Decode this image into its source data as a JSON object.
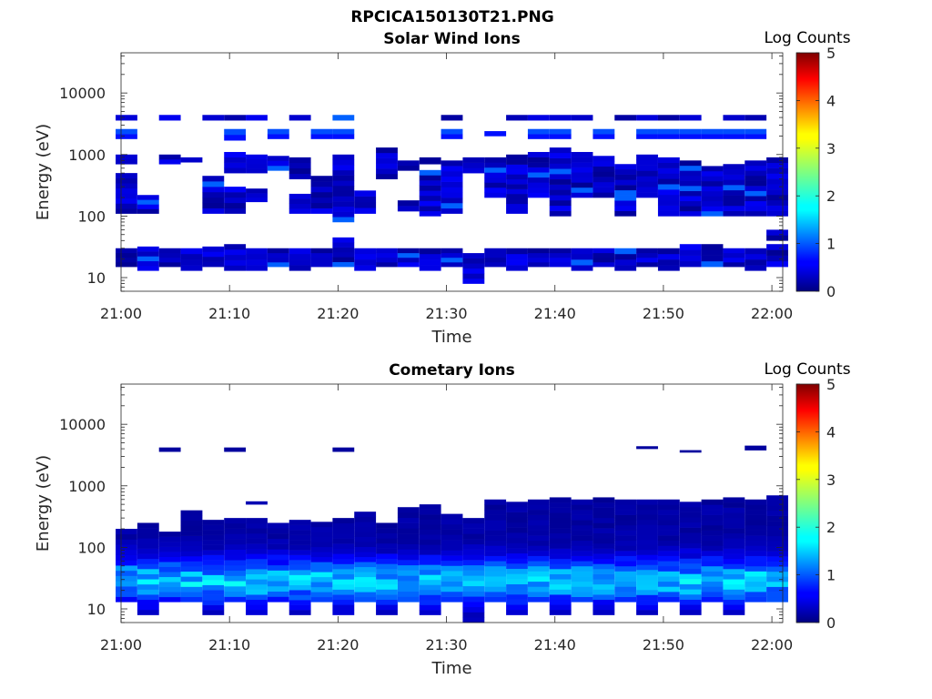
{
  "figure": {
    "title": "RPCICA150130T21.PNG"
  },
  "chart_data": [
    {
      "type": "heatmap",
      "title": "Solar Wind Ions",
      "xlabel": "Time",
      "ylabel": "Energy (eV)",
      "y_scale": "log",
      "ylim": [
        6,
        45000
      ],
      "y_ticks": [
        10,
        100,
        1000,
        10000
      ],
      "y_tick_labels": [
        "10",
        "100",
        "1000",
        "10000"
      ],
      "xlim": [
        "21:00",
        "22:01"
      ],
      "x_tick_labels": [
        "21:00",
        "21:10",
        "21:20",
        "21:30",
        "21:40",
        "21:50",
        "22:00"
      ],
      "colorbar": {
        "label": "Log Counts",
        "min": 0,
        "max": 5,
        "ticks": [
          "0",
          "1",
          "2",
          "3",
          "4",
          "5"
        ],
        "colormap": "jet"
      },
      "column_times_min": [
        0.5,
        2.5,
        4.5,
        6.5,
        8.5,
        10.5,
        12.5,
        14.5,
        16.5,
        18.5,
        20.5,
        22.5,
        24.5,
        26.5,
        28.5,
        30.5,
        32.5,
        34.5,
        36.5,
        38.5,
        40.5,
        42.5,
        44.5,
        46.5,
        48.5,
        50.5,
        52.5,
        54.5,
        56.5,
        58.5,
        60.5
      ],
      "column_energy_ranges_eV": [
        [
          [
            15,
            30
          ],
          [
            110,
            500
          ],
          [
            700,
            1000
          ],
          [
            1800,
            2600
          ],
          [
            3600,
            4400
          ]
        ],
        [
          [
            13,
            32
          ],
          [
            110,
            220
          ]
        ],
        [
          [
            15,
            30
          ],
          [
            700,
            1000
          ],
          [
            3600,
            4400
          ]
        ],
        [
          [
            13,
            30
          ],
          [
            750,
            900
          ]
        ],
        [
          [
            15,
            32
          ],
          [
            110,
            450
          ],
          [
            3600,
            4400
          ]
        ],
        [
          [
            13,
            35
          ],
          [
            110,
            300
          ],
          [
            500,
            1100
          ],
          [
            1700,
            2600
          ],
          [
            3600,
            4400
          ]
        ],
        [
          [
            13,
            30
          ],
          [
            170,
            280
          ],
          [
            500,
            1000
          ],
          [
            3600,
            4400
          ]
        ],
        [
          [
            15,
            30
          ],
          [
            550,
            950
          ],
          [
            1800,
            2600
          ]
        ],
        [
          [
            13,
            30
          ],
          [
            110,
            230
          ],
          [
            400,
            900
          ],
          [
            3600,
            4400
          ]
        ],
        [
          [
            15,
            30
          ],
          [
            110,
            450
          ],
          [
            1800,
            2600
          ]
        ],
        [
          [
            15,
            45
          ],
          [
            80,
            1000
          ],
          [
            1800,
            2600
          ],
          [
            3600,
            4400
          ]
        ],
        [
          [
            13,
            30
          ],
          [
            110,
            260
          ]
        ],
        [
          [
            15,
            30
          ],
          [
            400,
            1300
          ]
        ],
        [
          [
            15,
            30
          ],
          [
            120,
            180
          ],
          [
            550,
            800
          ]
        ],
        [
          [
            13,
            30
          ],
          [
            100,
            560
          ],
          [
            700,
            900
          ]
        ],
        [
          [
            15,
            30
          ],
          [
            110,
            800
          ],
          [
            1800,
            2600
          ],
          [
            3600,
            4400
          ]
        ],
        [
          [
            8,
            25
          ],
          [
            500,
            900
          ]
        ],
        [
          [
            15,
            30
          ],
          [
            200,
            900
          ],
          [
            2000,
            2400
          ]
        ],
        [
          [
            13,
            30
          ],
          [
            110,
            1000
          ],
          [
            3600,
            4400
          ]
        ],
        [
          [
            15,
            30
          ],
          [
            200,
            1100
          ],
          [
            1800,
            2600
          ],
          [
            3600,
            4400
          ]
        ],
        [
          [
            15,
            30
          ],
          [
            100,
            1300
          ],
          [
            1800,
            2600
          ],
          [
            3600,
            4400
          ]
        ],
        [
          [
            13,
            30
          ],
          [
            200,
            1100
          ],
          [
            3600,
            4400
          ]
        ],
        [
          [
            15,
            30
          ],
          [
            200,
            950
          ],
          [
            1800,
            2600
          ]
        ],
        [
          [
            13,
            30
          ],
          [
            100,
            700
          ],
          [
            3600,
            4400
          ]
        ],
        [
          [
            15,
            30
          ],
          [
            200,
            1000
          ],
          [
            1800,
            2600
          ],
          [
            3600,
            4400
          ]
        ],
        [
          [
            13,
            30
          ],
          [
            100,
            900
          ],
          [
            1800,
            2600
          ],
          [
            3600,
            4400
          ]
        ],
        [
          [
            15,
            35
          ],
          [
            100,
            800
          ],
          [
            1800,
            2600
          ],
          [
            3600,
            4400
          ]
        ],
        [
          [
            15,
            35
          ],
          [
            100,
            650
          ],
          [
            1800,
            2600
          ]
        ],
        [
          [
            15,
            30
          ],
          [
            100,
            700
          ],
          [
            1800,
            2600
          ],
          [
            3600,
            4400
          ]
        ],
        [
          [
            13,
            30
          ],
          [
            100,
            800
          ],
          [
            1800,
            2600
          ],
          [
            3600,
            4400
          ]
        ],
        [
          [
            15,
            35
          ],
          [
            40,
            60
          ],
          [
            100,
            900
          ]
        ]
      ],
      "dominant_level_log_counts": 0.2
    },
    {
      "type": "heatmap",
      "title": "Cometary Ions",
      "xlabel": "Time",
      "ylabel": "Energy (eV)",
      "y_scale": "log",
      "ylim": [
        6,
        45000
      ],
      "y_ticks": [
        10,
        100,
        1000,
        10000
      ],
      "y_tick_labels": [
        "10",
        "100",
        "1000",
        "10000"
      ],
      "xlim": [
        "21:00",
        "22:01"
      ],
      "x_tick_labels": [
        "21:00",
        "21:10",
        "21:20",
        "21:30",
        "21:40",
        "21:50",
        "22:00"
      ],
      "colorbar": {
        "label": "Log Counts",
        "min": 0,
        "max": 5,
        "ticks": [
          "0",
          "1",
          "2",
          "3",
          "4",
          "5"
        ],
        "colormap": "jet"
      },
      "column_times_min": [
        0.5,
        2.5,
        4.5,
        6.5,
        8.5,
        10.5,
        12.5,
        14.5,
        16.5,
        18.5,
        20.5,
        22.5,
        24.5,
        26.5,
        28.5,
        30.5,
        32.5,
        34.5,
        36.5,
        38.5,
        40.5,
        42.5,
        44.5,
        46.5,
        48.5,
        50.5,
        52.5,
        54.5,
        56.5,
        58.5,
        60.5
      ],
      "column_energy_ranges_eV": [
        [
          [
            13,
            200
          ]
        ],
        [
          [
            8,
            250
          ]
        ],
        [
          [
            13,
            180
          ],
          [
            3600,
            4200
          ]
        ],
        [
          [
            13,
            400
          ]
        ],
        [
          [
            8,
            280
          ]
        ],
        [
          [
            13,
            300
          ],
          [
            3600,
            4200
          ]
        ],
        [
          [
            8,
            300
          ],
          [
            500,
            560
          ]
        ],
        [
          [
            13,
            250
          ]
        ],
        [
          [
            8,
            280
          ]
        ],
        [
          [
            13,
            260
          ]
        ],
        [
          [
            8,
            300
          ],
          [
            3600,
            4200
          ]
        ],
        [
          [
            13,
            380
          ]
        ],
        [
          [
            8,
            250
          ]
        ],
        [
          [
            13,
            450
          ]
        ],
        [
          [
            8,
            500
          ]
        ],
        [
          [
            13,
            350
          ]
        ],
        [
          [
            6,
            300
          ]
        ],
        [
          [
            13,
            600
          ]
        ],
        [
          [
            8,
            550
          ]
        ],
        [
          [
            13,
            600
          ]
        ],
        [
          [
            8,
            650
          ]
        ],
        [
          [
            13,
            600
          ]
        ],
        [
          [
            8,
            650
          ]
        ],
        [
          [
            13,
            600
          ]
        ],
        [
          [
            8,
            600
          ],
          [
            4000,
            4400
          ]
        ],
        [
          [
            13,
            600
          ]
        ],
        [
          [
            8,
            550
          ],
          [
            3500,
            3800
          ]
        ],
        [
          [
            13,
            600
          ]
        ],
        [
          [
            8,
            650
          ]
        ],
        [
          [
            13,
            600
          ],
          [
            3800,
            4500
          ]
        ],
        [
          [
            13,
            700
          ]
        ]
      ],
      "peak_level_log_counts": 1.8
    }
  ]
}
